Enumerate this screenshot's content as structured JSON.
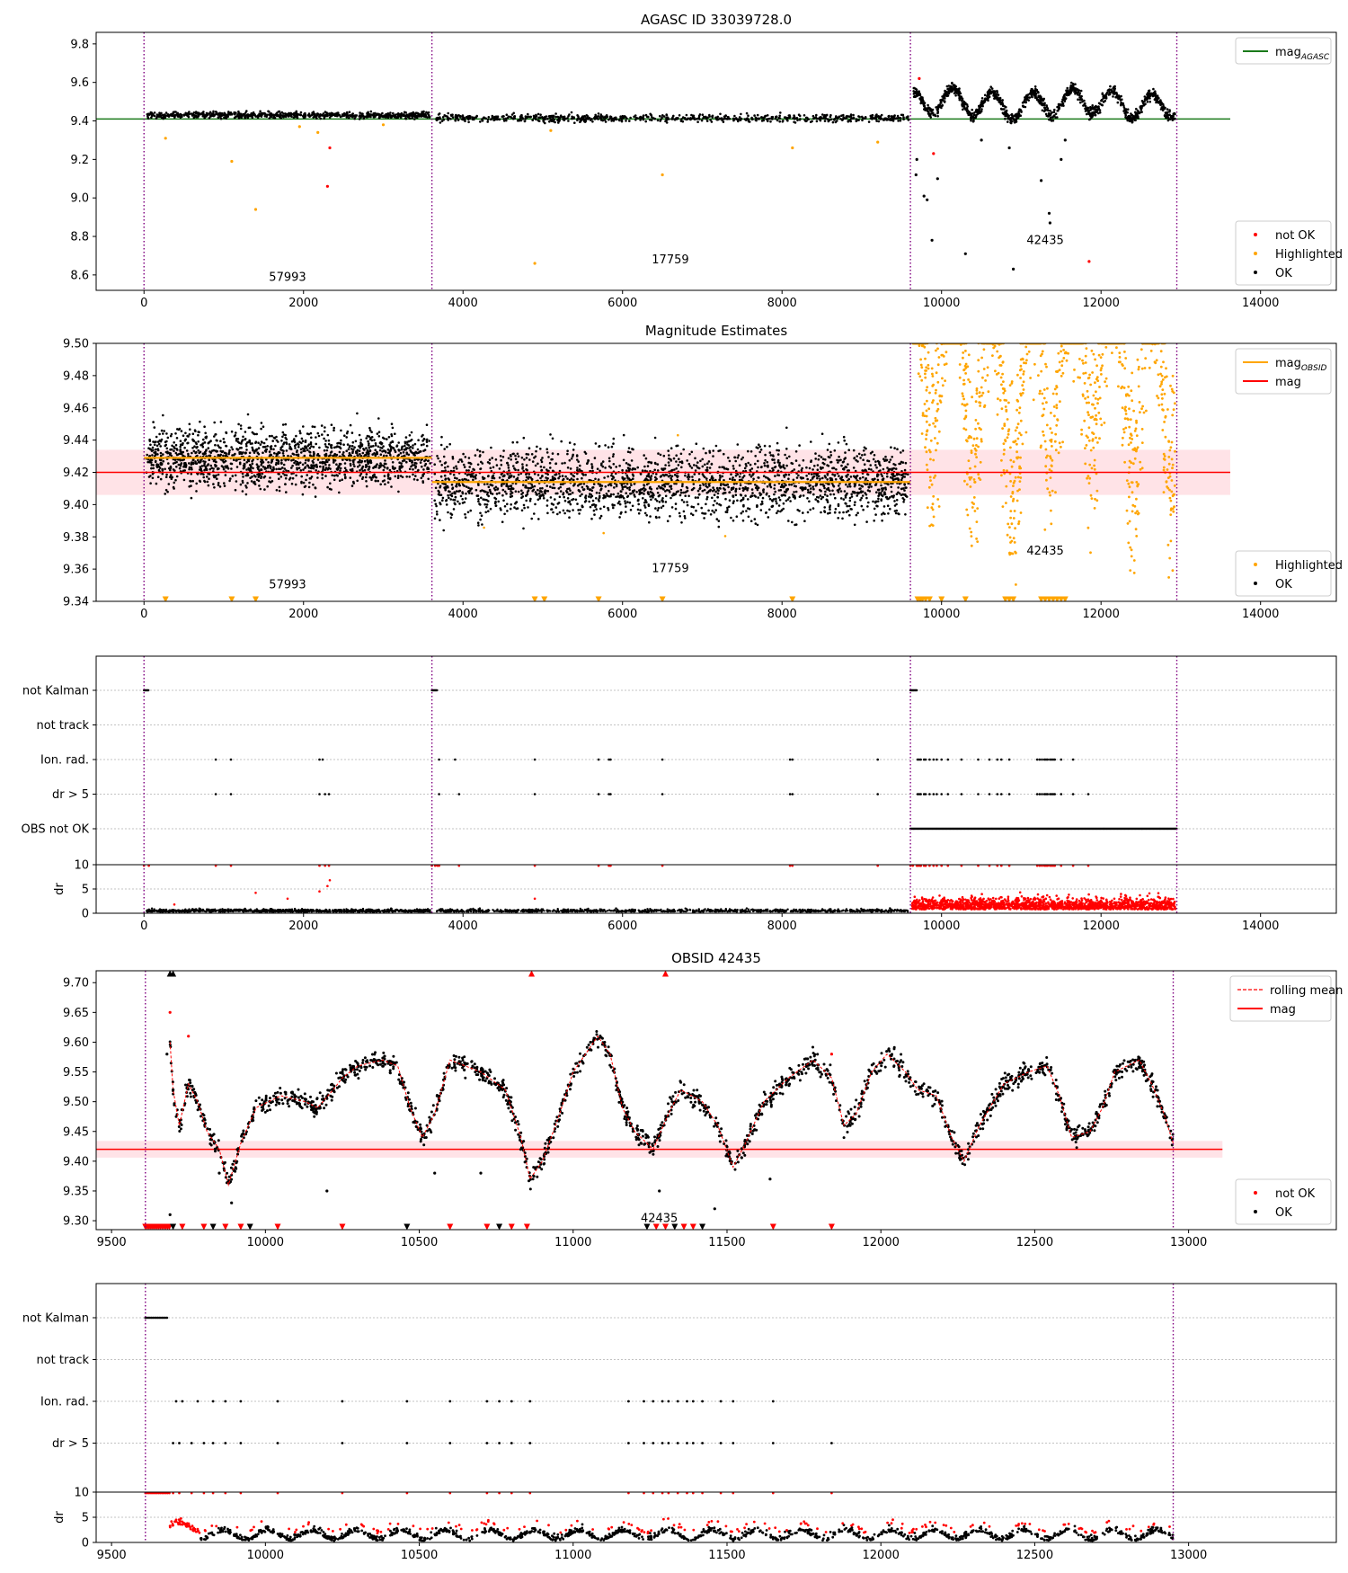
{
  "chart_data": [
    {
      "type": "scatter",
      "title": "AGASC ID 33039728.0",
      "xlim": [
        -600,
        14950
      ],
      "ylim": [
        8.52,
        9.86
      ],
      "xticks": [
        0,
        2000,
        4000,
        6000,
        8000,
        10000,
        12000,
        14000
      ],
      "yticks": [
        8.6,
        8.8,
        9.0,
        9.2,
        9.4,
        9.6,
        9.8
      ],
      "ytick_labels": [
        "8.6",
        "8.8",
        "9.0",
        "9.2",
        "9.4",
        "9.6",
        "9.8"
      ],
      "vlines": [
        0,
        3610,
        9610,
        12950
      ],
      "hlines": [
        {
          "name": "mag_AGASC",
          "y": 9.41,
          "color": "#1a7a1a",
          "x": [
            -600,
            13620
          ]
        }
      ],
      "segments": [
        {
          "x0": 0,
          "x1": 3610,
          "kind": "flat",
          "base": 9.43,
          "noise": 0.008
        },
        {
          "x0": 3610,
          "x1": 9610,
          "kind": "flat",
          "base": 9.415,
          "noise": 0.01
        },
        {
          "x0": 9610,
          "x1": 12950,
          "kind": "osc",
          "base": 9.5,
          "noise": 0.015
        }
      ],
      "obsid_labels": [
        {
          "text": "57993",
          "x": 1800,
          "y": 8.57
        },
        {
          "text": "17759",
          "x": 6600,
          "y": 8.66
        },
        {
          "text": "42435",
          "x": 11300,
          "y": 8.76
        }
      ],
      "highlight_points": [
        [
          270,
          9.31
        ],
        [
          1100,
          9.19
        ],
        [
          1400,
          8.94
        ],
        [
          1950,
          9.37
        ],
        [
          2180,
          9.34
        ],
        [
          4900,
          8.66
        ],
        [
          6500,
          9.12
        ],
        [
          8130,
          9.26
        ],
        [
          9200,
          9.29
        ],
        [
          5100,
          9.35
        ],
        [
          3000,
          9.38
        ]
      ],
      "notok_points": [
        [
          2300,
          9.06
        ],
        [
          2330,
          9.26
        ],
        [
          9720,
          9.62
        ],
        [
          9900,
          9.23
        ],
        [
          11850,
          8.67
        ]
      ],
      "ok_scatter": [
        [
          9780,
          9.01
        ],
        [
          9820,
          8.99
        ],
        [
          9880,
          8.78
        ],
        [
          9950,
          9.1
        ],
        [
          10300,
          8.71
        ],
        [
          10500,
          9.3
        ],
        [
          10850,
          9.26
        ],
        [
          10900,
          8.63
        ],
        [
          11250,
          9.09
        ],
        [
          11350,
          8.92
        ],
        [
          11360,
          8.87
        ],
        [
          11500,
          9.2
        ],
        [
          11550,
          9.3
        ],
        [
          9690,
          9.2
        ],
        [
          9680,
          9.12
        ]
      ],
      "legend": [
        {
          "label": "mag",
          "sub": "AGASC",
          "kind": "line",
          "color": "#1a7a1a"
        },
        {
          "label": "not OK",
          "kind": "dot",
          "color": "#ff0000"
        },
        {
          "label": "Highlighted",
          "kind": "dot",
          "color": "#ffa500"
        },
        {
          "label": "OK",
          "kind": "dot",
          "color": "#000000"
        }
      ]
    },
    {
      "type": "scatter",
      "title": "Magnitude Estimates",
      "xlim": [
        -600,
        14950
      ],
      "ylim": [
        9.34,
        9.5
      ],
      "xticks": [
        0,
        2000,
        4000,
        6000,
        8000,
        10000,
        12000,
        14000
      ],
      "yticks": [
        9.34,
        9.36,
        9.38,
        9.4,
        9.42,
        9.44,
        9.46,
        9.48,
        9.5
      ],
      "ytick_labels": [
        "9.34",
        "9.36",
        "9.38",
        "9.40",
        "9.42",
        "9.44",
        "9.46",
        "9.48",
        "9.50"
      ],
      "vlines": [
        0,
        3610,
        9610,
        12950
      ],
      "mag": 9.42,
      "mag_band": [
        9.406,
        9.434
      ],
      "mag_obsid": [
        {
          "x0": 0,
          "x1": 3610,
          "y": 9.429
        },
        {
          "x0": 3610,
          "x1": 9610,
          "y": 9.414
        }
      ],
      "obsid_labels": [
        {
          "text": "57993",
          "x": 1800,
          "y": 9.348
        },
        {
          "text": "17759",
          "x": 6600,
          "y": 9.358
        },
        {
          "text": "42435",
          "x": 11300,
          "y": 9.369
        }
      ],
      "legend": [
        {
          "label": "mag",
          "sub": "OBSID",
          "kind": "line",
          "color": "#ffa500"
        },
        {
          "label": "mag",
          "kind": "line",
          "color": "#ff0000"
        },
        {
          "label": "Highlighted",
          "kind": "dot",
          "color": "#ffa500"
        },
        {
          "label": "OK",
          "kind": "dot",
          "color": "#000000"
        }
      ]
    },
    {
      "type": "scatter",
      "title": "",
      "xlim": [
        -600,
        14950
      ],
      "categories": [
        "not Kalman",
        "not track",
        "Ion. rad.",
        "dr > 5",
        "OBS not OK"
      ],
      "vlines": [
        0,
        3610,
        9610,
        12950
      ],
      "not_kalman_ranges": [
        [
          0,
          60
        ],
        [
          3610,
          3680
        ],
        [
          9610,
          9690
        ]
      ],
      "ion_rad_x": [
        900,
        1090,
        2200,
        2240,
        3700,
        3900,
        4900,
        5700,
        5830,
        5850,
        6500,
        8100,
        8130,
        9200,
        9700,
        9720,
        9740,
        9780,
        9800,
        9850,
        9900,
        9940,
        10000,
        10080,
        10250,
        10460,
        10600,
        10700,
        10750,
        10850,
        11200,
        11230,
        11260,
        11290,
        11310,
        11330,
        11360,
        11380,
        11400,
        11420,
        11500,
        11650
      ],
      "dr5_x": [
        900,
        1090,
        2200,
        2270,
        2320,
        3700,
        3950,
        4900,
        5700,
        5830,
        5850,
        6500,
        8100,
        8130,
        9200,
        9700,
        9720,
        9740,
        9780,
        9800,
        9850,
        9900,
        9940,
        10000,
        10080,
        10250,
        10460,
        10600,
        10700,
        10750,
        10850,
        11200,
        11230,
        11260,
        11290,
        11310,
        11330,
        11360,
        11380,
        11400,
        11420,
        11500,
        11650,
        11840
      ],
      "obs_not_ok_range": [
        9610,
        12950
      ]
    },
    {
      "type": "scatter",
      "title": "",
      "xlim": [
        -600,
        14950
      ],
      "xticks": [
        0,
        2000,
        4000,
        6000,
        8000,
        10000,
        12000,
        14000
      ],
      "ylabel": "dr",
      "ylim": [
        0,
        10
      ],
      "yticks": [
        0,
        5,
        10
      ],
      "ytick_labels": [
        "0",
        "5",
        "10"
      ],
      "vlines": [
        0,
        3610,
        9610,
        12950
      ],
      "dr_outliers": [
        [
          1400,
          4.2
        ],
        [
          1800,
          3.0
        ],
        [
          2300,
          5.6
        ],
        [
          2330,
          6.8
        ],
        [
          2200,
          4.5
        ],
        [
          4900,
          3.0
        ],
        [
          380,
          1.8
        ]
      ]
    },
    {
      "type": "line",
      "title": "OBSID 42435",
      "xlim": [
        9450,
        13480
      ],
      "ylim": [
        9.285,
        9.72
      ],
      "xticks": [
        9500,
        10000,
        10500,
        11000,
        11500,
        12000,
        12500,
        13000
      ],
      "yticks": [
        9.3,
        9.35,
        9.4,
        9.45,
        9.5,
        9.55,
        9.6,
        9.65,
        9.7
      ],
      "ytick_labels": [
        "9.30",
        "9.35",
        "9.40",
        "9.45",
        "9.50",
        "9.55",
        "9.60",
        "9.65",
        "9.70"
      ],
      "vlines": [
        9610,
        12950
      ],
      "mag": 9.42,
      "mag_band": [
        9.406,
        9.434
      ],
      "curve": [
        [
          9690,
          9.6
        ],
        [
          9700,
          9.52
        ],
        [
          9720,
          9.46
        ],
        [
          9750,
          9.53
        ],
        [
          9780,
          9.5
        ],
        [
          9810,
          9.45
        ],
        [
          9850,
          9.42
        ],
        [
          9880,
          9.36
        ],
        [
          9920,
          9.43
        ],
        [
          9970,
          9.49
        ],
        [
          10050,
          9.51
        ],
        [
          10130,
          9.5
        ],
        [
          10170,
          9.49
        ],
        [
          10220,
          9.52
        ],
        [
          10250,
          9.54
        ],
        [
          10300,
          9.56
        ],
        [
          10380,
          9.57
        ],
        [
          10430,
          9.56
        ],
        [
          10470,
          9.49
        ],
        [
          10510,
          9.44
        ],
        [
          10550,
          9.48
        ],
        [
          10600,
          9.57
        ],
        [
          10700,
          9.55
        ],
        [
          10780,
          9.52
        ],
        [
          10830,
          9.44
        ],
        [
          10860,
          9.37
        ],
        [
          10900,
          9.4
        ],
        [
          10950,
          9.47
        ],
        [
          11000,
          9.55
        ],
        [
          11080,
          9.61
        ],
        [
          11120,
          9.58
        ],
        [
          11160,
          9.49
        ],
        [
          11200,
          9.45
        ],
        [
          11260,
          9.42
        ],
        [
          11310,
          9.48
        ],
        [
          11350,
          9.52
        ],
        [
          11420,
          9.5
        ],
        [
          11470,
          9.46
        ],
        [
          11520,
          9.39
        ],
        [
          11560,
          9.43
        ],
        [
          11620,
          9.5
        ],
        [
          11700,
          9.54
        ],
        [
          11780,
          9.57
        ],
        [
          11840,
          9.54
        ],
        [
          11880,
          9.46
        ],
        [
          11920,
          9.48
        ],
        [
          11970,
          9.55
        ],
        [
          12020,
          9.58
        ],
        [
          12080,
          9.55
        ],
        [
          12120,
          9.52
        ],
        [
          12180,
          9.51
        ],
        [
          12230,
          9.44
        ],
        [
          12270,
          9.4
        ],
        [
          12320,
          9.46
        ],
        [
          12400,
          9.53
        ],
        [
          12480,
          9.55
        ],
        [
          12540,
          9.56
        ],
        [
          12580,
          9.51
        ],
        [
          12620,
          9.44
        ],
        [
          12680,
          9.45
        ],
        [
          12720,
          9.49
        ],
        [
          12760,
          9.55
        ],
        [
          12840,
          9.57
        ],
        [
          12880,
          9.53
        ],
        [
          12920,
          9.48
        ],
        [
          12950,
          9.43
        ]
      ],
      "obsid_label": {
        "text": "42435",
        "x": 11280,
        "y": 9.298
      },
      "legend": [
        {
          "label": "rolling mean",
          "kind": "dashed",
          "color": "#ff0000"
        },
        {
          "label": "mag",
          "kind": "line",
          "color": "#ff0000"
        },
        {
          "label": "not OK",
          "kind": "dot",
          "color": "#ff0000"
        },
        {
          "label": "OK",
          "kind": "dot",
          "color": "#000000"
        }
      ]
    },
    {
      "type": "scatter",
      "title": "",
      "xlim": [
        9450,
        13480
      ],
      "categories": [
        "not Kalman",
        "not track",
        "Ion. rad.",
        "dr > 5"
      ],
      "vlines": [
        9610,
        12950
      ],
      "not_kalman_range": [
        9610,
        9680
      ],
      "ion_rad_x": [
        9710,
        9730,
        9780,
        9830,
        9870,
        9920,
        10040,
        10250,
        10460,
        10600,
        10720,
        10760,
        10800,
        10860,
        11180,
        11230,
        11260,
        11290,
        11310,
        11340,
        11370,
        11390,
        11420,
        11480,
        11520,
        11650
      ],
      "dr5_x": [
        9700,
        9720,
        9760,
        9800,
        9830,
        9870,
        9920,
        10040,
        10250,
        10460,
        10600,
        10720,
        10760,
        10800,
        10860,
        11180,
        11230,
        11260,
        11290,
        11310,
        11340,
        11370,
        11390,
        11420,
        11480,
        11520,
        11650,
        11840
      ]
    },
    {
      "type": "scatter",
      "title": "",
      "xlim": [
        9450,
        13480
      ],
      "xticks": [
        9500,
        10000,
        10500,
        11000,
        11500,
        12000,
        12500,
        13000
      ],
      "ylabel": "dr",
      "ylim": [
        0,
        10
      ],
      "yticks": [
        0,
        5,
        10
      ],
      "ytick_labels": [
        "0",
        "5",
        "10"
      ],
      "vlines": [
        9610,
        12950
      ]
    }
  ]
}
